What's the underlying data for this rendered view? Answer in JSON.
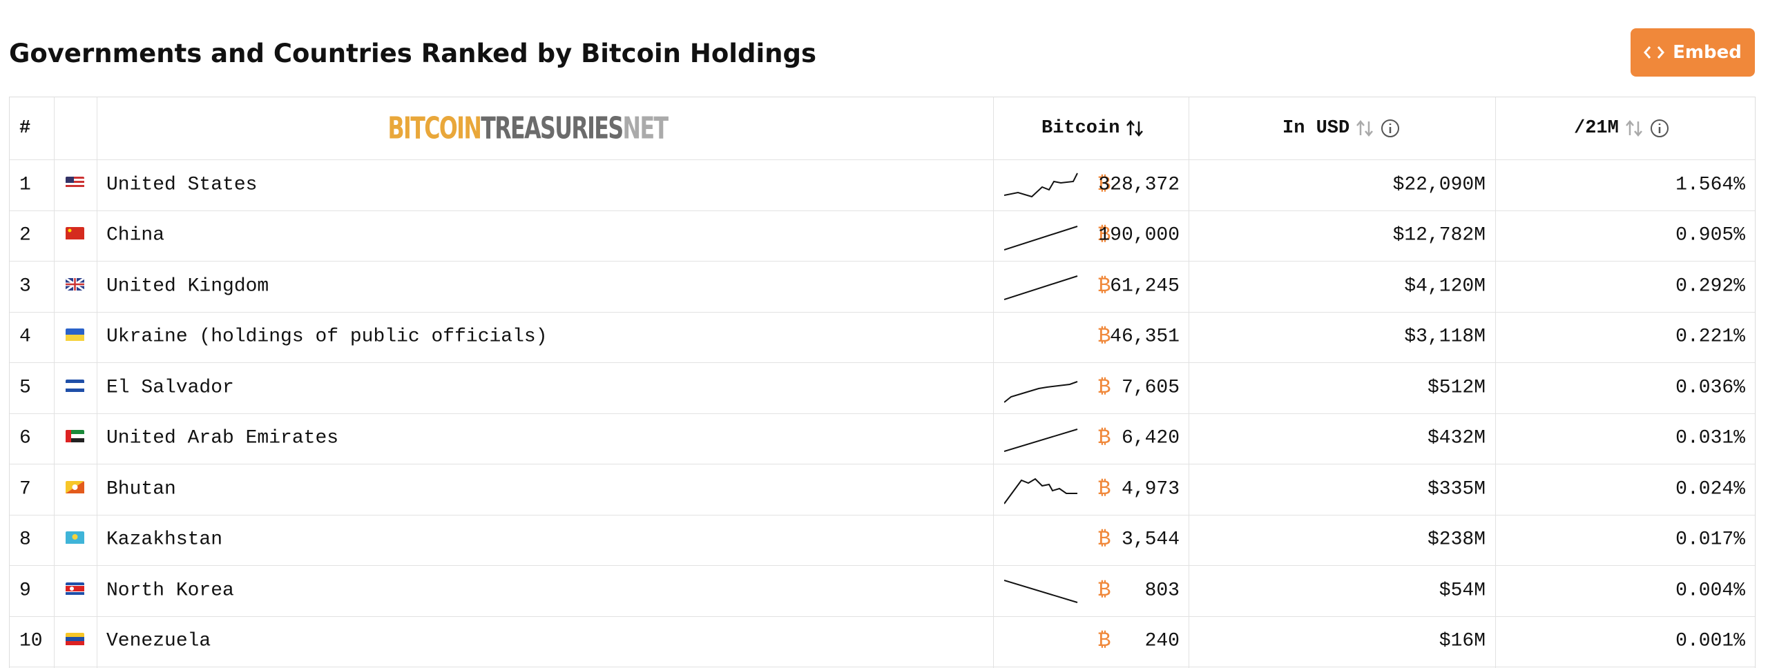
{
  "header": {
    "title": "Governments and Countries Ranked by Bitcoin Holdings",
    "embed_button": "Embed"
  },
  "table": {
    "logo": [
      "BITCOIN",
      "TREASURIES",
      "NET"
    ],
    "columns": [
      "#",
      "Bitcoin",
      "In USD",
      "/21M"
    ],
    "btc_symbol": "₿",
    "rows": [
      [
        "1",
        "United States",
        "328,372",
        "$22,090M",
        "1.564%"
      ],
      [
        "2",
        "China",
        "190,000",
        "$12,782M",
        "0.905%"
      ],
      [
        "3",
        "United Kingdom",
        "61,245",
        "$4,120M",
        "0.292%"
      ],
      [
        "4",
        "Ukraine (holdings of public officials)",
        "46,351",
        "$3,118M",
        "0.221%"
      ],
      [
        "5",
        "El Salvador",
        "7,605",
        "$512M",
        "0.036%"
      ],
      [
        "6",
        "United Arab Emirates",
        "6,420",
        "$432M",
        "0.031%"
      ],
      [
        "7",
        "Bhutan",
        "4,973",
        "$335M",
        "0.024%"
      ],
      [
        "8",
        "Kazakhstan",
        "3,544",
        "$238M",
        "0.017%"
      ],
      [
        "9",
        "North Korea",
        "803",
        "$54M",
        "0.004%"
      ],
      [
        "10",
        "Venezuela",
        "240",
        "$16M",
        "0.001%"
      ]
    ]
  }
}
